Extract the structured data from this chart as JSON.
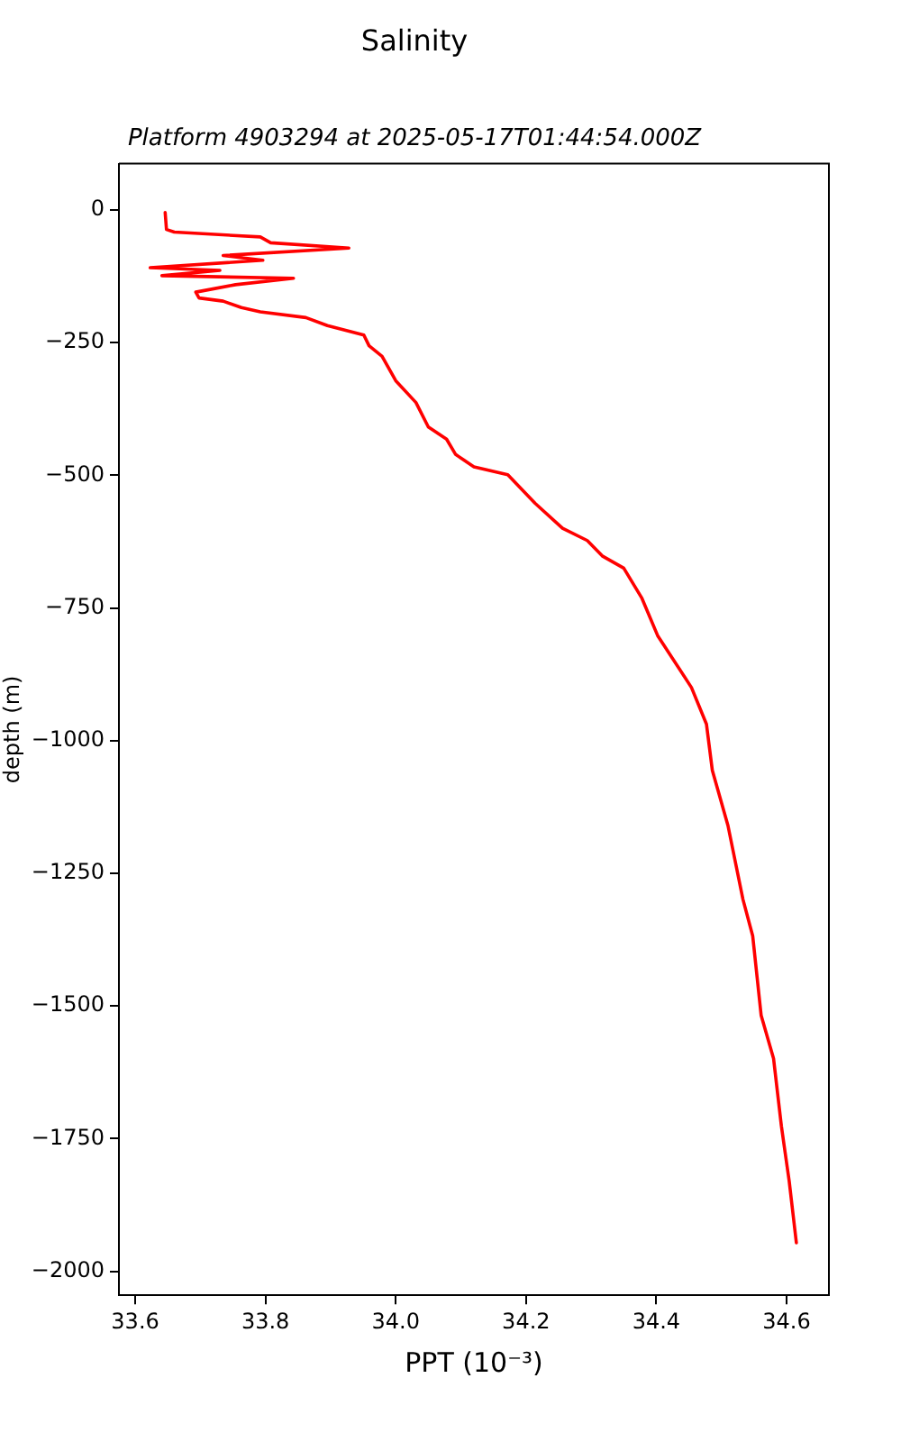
{
  "chart_data": {
    "type": "line",
    "title": "Salinity",
    "subtitle": "Platform 4903294 at 2025-05-17T01:44:54.000Z",
    "xlabel": "PPT (10⁻³)",
    "ylabel": "depth (m)",
    "series": [
      {
        "color": "#ff0000",
        "x": [
          33.646,
          33.648,
          33.66,
          33.792,
          33.808,
          33.928,
          33.735,
          33.796,
          33.623,
          33.73,
          33.641,
          33.843,
          33.754,
          33.693,
          33.698,
          33.735,
          33.763,
          33.792,
          33.862,
          33.895,
          33.951,
          33.959,
          33.979,
          34.0,
          34.031,
          34.05,
          34.078,
          34.092,
          34.12,
          34.172,
          34.214,
          34.256,
          34.294,
          34.317,
          34.35,
          34.378,
          34.402,
          34.454,
          34.477,
          34.486,
          34.51,
          34.533,
          34.548,
          34.561,
          34.58,
          34.592,
          34.604,
          34.615
        ],
        "values": [
          -5,
          -37,
          -42,
          -51,
          -62,
          -72,
          -86,
          -95,
          -109,
          -114,
          -124,
          -129,
          -141,
          -155,
          -166,
          -172,
          -184,
          -192,
          -203,
          -218,
          -236,
          -256,
          -276,
          -322,
          -363,
          -409,
          -432,
          -461,
          -484,
          -499,
          -553,
          -600,
          -623,
          -652,
          -675,
          -732,
          -802,
          -900,
          -969,
          -1056,
          -1160,
          -1299,
          -1368,
          -1518,
          -1599,
          -1726,
          -1830,
          -1946
        ]
      }
    ],
    "xlim": [
      33.575,
      34.665
    ],
    "xticks": [
      33.6,
      33.8,
      {
        "value": 34.0,
        "label": "34.0"
      },
      34.2,
      34.4,
      34.6
    ],
    "ylim": [
      -2045,
      87
    ],
    "yticks": [
      0,
      -250,
      -500,
      -750,
      -1000,
      -1250,
      -1500,
      -1750,
      -2000
    ],
    "grid": false,
    "legend": false,
    "marker": "none",
    "line_style": "solid"
  }
}
